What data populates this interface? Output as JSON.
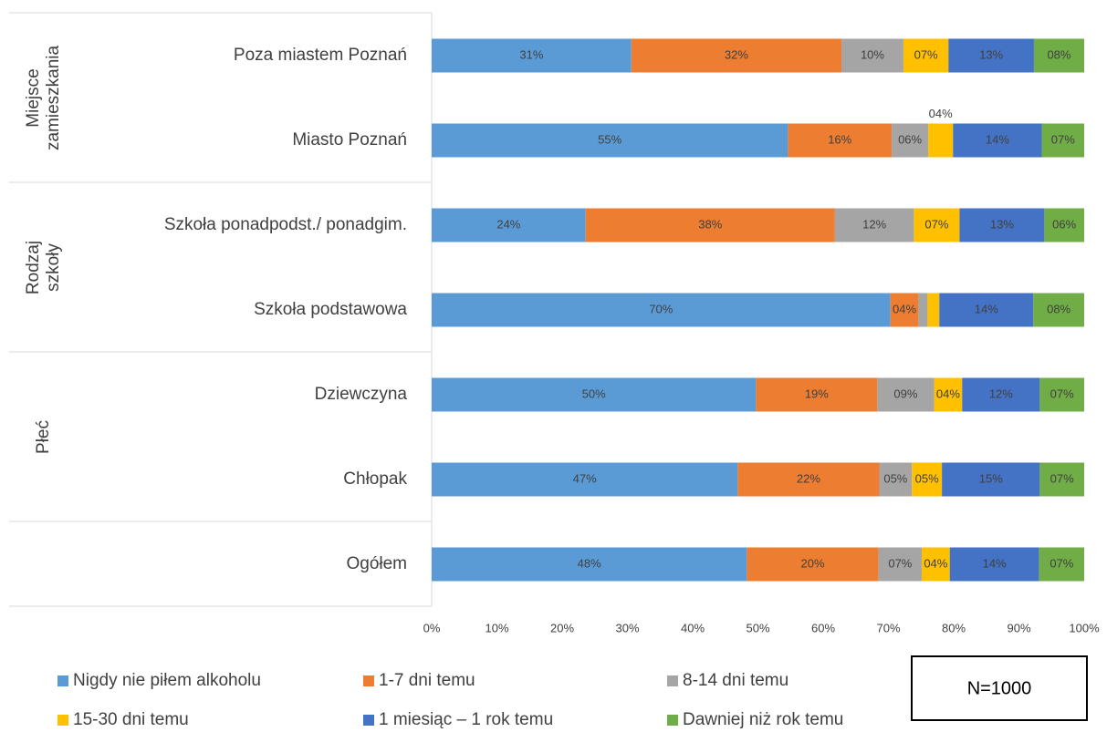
{
  "chart_data": {
    "type": "stacked-barh",
    "categories": [
      "Poza miastem Poznań",
      "Miasto Poznań",
      "Szkoła ponadpodst./ ponadgim.",
      "Szkoła podstawowa",
      "Dziewczyna",
      "Chłopak",
      "Ogółem"
    ],
    "groups": [
      "Miejsce zamieszkania",
      "Rodzaj szkoły",
      "Płeć"
    ],
    "series": [
      {
        "name": "Nigdy nie piłem alkoholu",
        "color": "#5b9bd5",
        "values": [
          30.6,
          54.6,
          23.6,
          70.3,
          49.7,
          46.9,
          48.3
        ],
        "value_labels": [
          "31%",
          "55%",
          "24%",
          "70%",
          "50%",
          "47%",
          "48%"
        ]
      },
      {
        "name": "1-7 dni temu",
        "color": "#ed7d31",
        "values": [
          32.2,
          15.9,
          38.2,
          4.3,
          18.6,
          21.7,
          20.2
        ],
        "value_labels": [
          "32%",
          "16%",
          "38%",
          "04%",
          "19%",
          "22%",
          "20%"
        ]
      },
      {
        "name": "8-14 dni temu",
        "color": "#a5a5a5",
        "values": [
          9.5,
          5.6,
          12.1,
          1.4,
          8.7,
          5.0,
          6.6
        ],
        "value_labels": [
          "10%",
          "06%",
          "12%",
          null,
          "09%",
          "05%",
          "07%"
        ]
      },
      {
        "name": "15-30 dni temu",
        "color": "#ffc000",
        "values": [
          6.9,
          3.8,
          7.0,
          1.8,
          4.3,
          4.6,
          4.3
        ],
        "value_labels": [
          "07%",
          "04%",
          "07%",
          null,
          "04%",
          "05%",
          "04%"
        ]
      },
      {
        "name": "1 miesiąc – 1 rok temu",
        "color": "#4472c4",
        "values": [
          13.1,
          13.6,
          13.0,
          14.4,
          11.9,
          15.0,
          13.7
        ],
        "value_labels": [
          "13%",
          "14%",
          "13%",
          "14%",
          "12%",
          "15%",
          "14%"
        ]
      },
      {
        "name": "Dawniej niż rok temu",
        "color": "#70ad47",
        "values": [
          7.7,
          6.5,
          6.1,
          7.8,
          6.8,
          6.8,
          6.9
        ],
        "value_labels": [
          "08%",
          "07%",
          "06%",
          "08%",
          "07%",
          "07%",
          "07%"
        ]
      }
    ],
    "xlim": [
      0,
      100
    ],
    "xticks": [
      {
        "value": 0,
        "label": "0%"
      },
      {
        "value": 10,
        "label": "10%"
      },
      {
        "value": 20,
        "label": "20%"
      },
      {
        "value": 30,
        "label": "30%"
      },
      {
        "value": 40,
        "label": "40%"
      },
      {
        "value": 50,
        "label": "50%"
      },
      {
        "value": 60,
        "label": "60%"
      },
      {
        "value": 70,
        "label": "70%"
      },
      {
        "value": 80,
        "label": "80%"
      },
      {
        "value": 90,
        "label": "90%"
      },
      {
        "value": 100,
        "label": "100%"
      }
    ],
    "note": "N=1000"
  }
}
